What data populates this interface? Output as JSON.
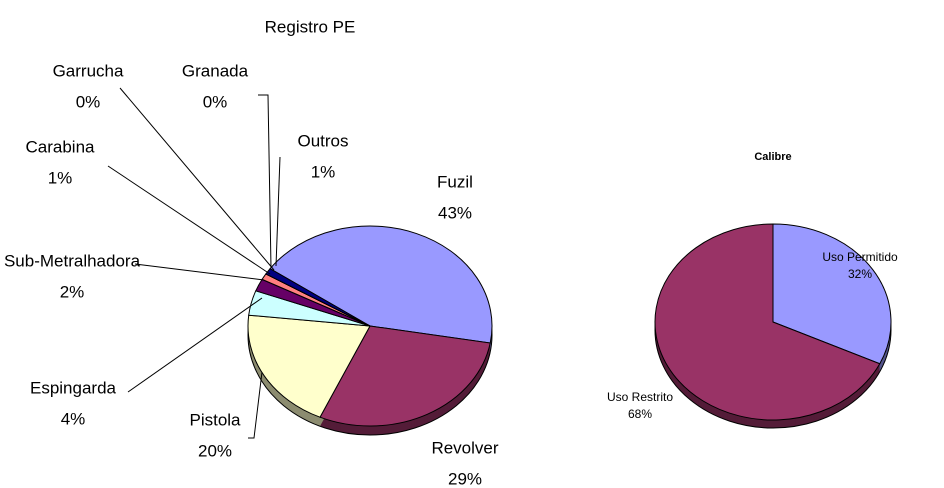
{
  "chart_data": [
    {
      "type": "pie",
      "title": "Registro PE",
      "categories": [
        "Fuzil",
        "Revolver",
        "Pistola",
        "Espingarda",
        "Sub-Metralhadora",
        "Carabina",
        "Garrucha",
        "Granada",
        "Outros"
      ],
      "values": [
        43,
        29,
        20,
        4,
        2,
        1,
        0,
        0,
        1
      ],
      "value_labels": [
        "43%",
        "29%",
        "20%",
        "4%",
        "2%",
        "1%",
        "0%",
        "0%",
        "1%"
      ],
      "colors": [
        "#9999ff",
        "#993366",
        "#ffffcc",
        "#ccffff",
        "#660066",
        "#ff8080",
        "#0066cc",
        "#ccccff",
        "#000080"
      ]
    },
    {
      "type": "pie",
      "title": "Calibre",
      "categories": [
        "Uso Permitido",
        "Uso Restrito"
      ],
      "values": [
        32,
        68
      ],
      "value_labels": [
        "32%",
        "68%"
      ],
      "colors": [
        "#9999ff",
        "#993366"
      ]
    }
  ]
}
